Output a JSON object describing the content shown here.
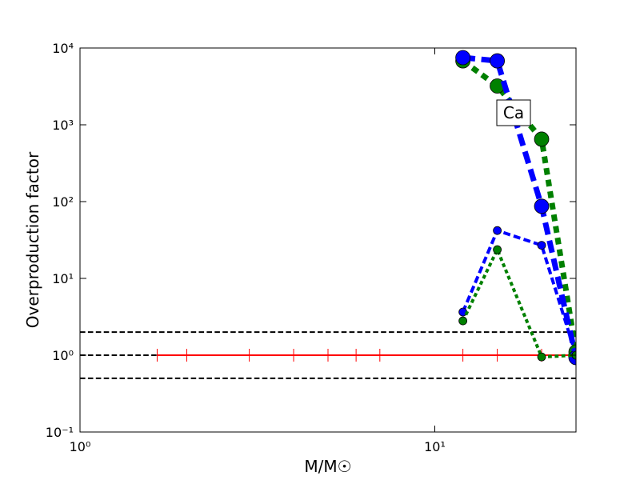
{
  "chart_data": {
    "type": "line",
    "xlabel": "M/M☉",
    "ylabel": "Overproduction factor",
    "annotation": "Ca",
    "xscale": "log",
    "yscale": "log",
    "xlim": [
      1,
      25
    ],
    "ylim": [
      0.1,
      10000
    ],
    "xticks": [
      {
        "value": 1,
        "label": "10⁰"
      },
      {
        "value": 10,
        "label": "10¹"
      }
    ],
    "yticks": [
      {
        "value": 0.1,
        "label": "10⁻¹"
      },
      {
        "value": 1,
        "label": "10⁰"
      },
      {
        "value": 10,
        "label": "10¹"
      },
      {
        "value": 100,
        "label": "10²"
      },
      {
        "value": 1000,
        "label": "10³"
      },
      {
        "value": 10000,
        "label": "10⁴"
      }
    ],
    "hlines": {
      "values": [
        2,
        1,
        0.5
      ],
      "color": "#000000",
      "linestyle": "dashed"
    },
    "series": [
      {
        "color": "#ff0000",
        "linestyle": "solid",
        "linewidth": 2,
        "marker": "|",
        "markersize": 8,
        "x": [
          1.65,
          2,
          3,
          4,
          5,
          6,
          7,
          12,
          15,
          20,
          25
        ],
        "values": [
          1,
          1,
          1,
          1,
          1,
          1,
          1,
          1,
          1,
          1,
          1
        ]
      },
      {
        "color": "#008000",
        "linestyle": "dotted",
        "linewidth": 7,
        "marker": "o",
        "markersize": 9,
        "x": [
          12,
          15,
          20,
          25
        ],
        "values": [
          6800,
          3200,
          650,
          1.1
        ]
      },
      {
        "color": "#0000ff",
        "linestyle": "dashed",
        "linewidth": 7,
        "marker": "o",
        "markersize": 9,
        "x": [
          12,
          15,
          20,
          25
        ],
        "values": [
          7500,
          6800,
          87,
          0.93
        ]
      },
      {
        "color": "#0000ff",
        "linestyle": "dashed",
        "linewidth": 4,
        "marker": "o",
        "markersize": 5,
        "x": [
          12,
          15,
          20,
          25
        ],
        "values": [
          3.65,
          42,
          27,
          1.0
        ]
      },
      {
        "color": "#008000",
        "linestyle": "dotted",
        "linewidth": 4,
        "marker": "o",
        "markersize": 5,
        "x": [
          12,
          15,
          20,
          25
        ],
        "values": [
          2.8,
          23.7,
          0.95,
          1.0
        ]
      }
    ]
  }
}
